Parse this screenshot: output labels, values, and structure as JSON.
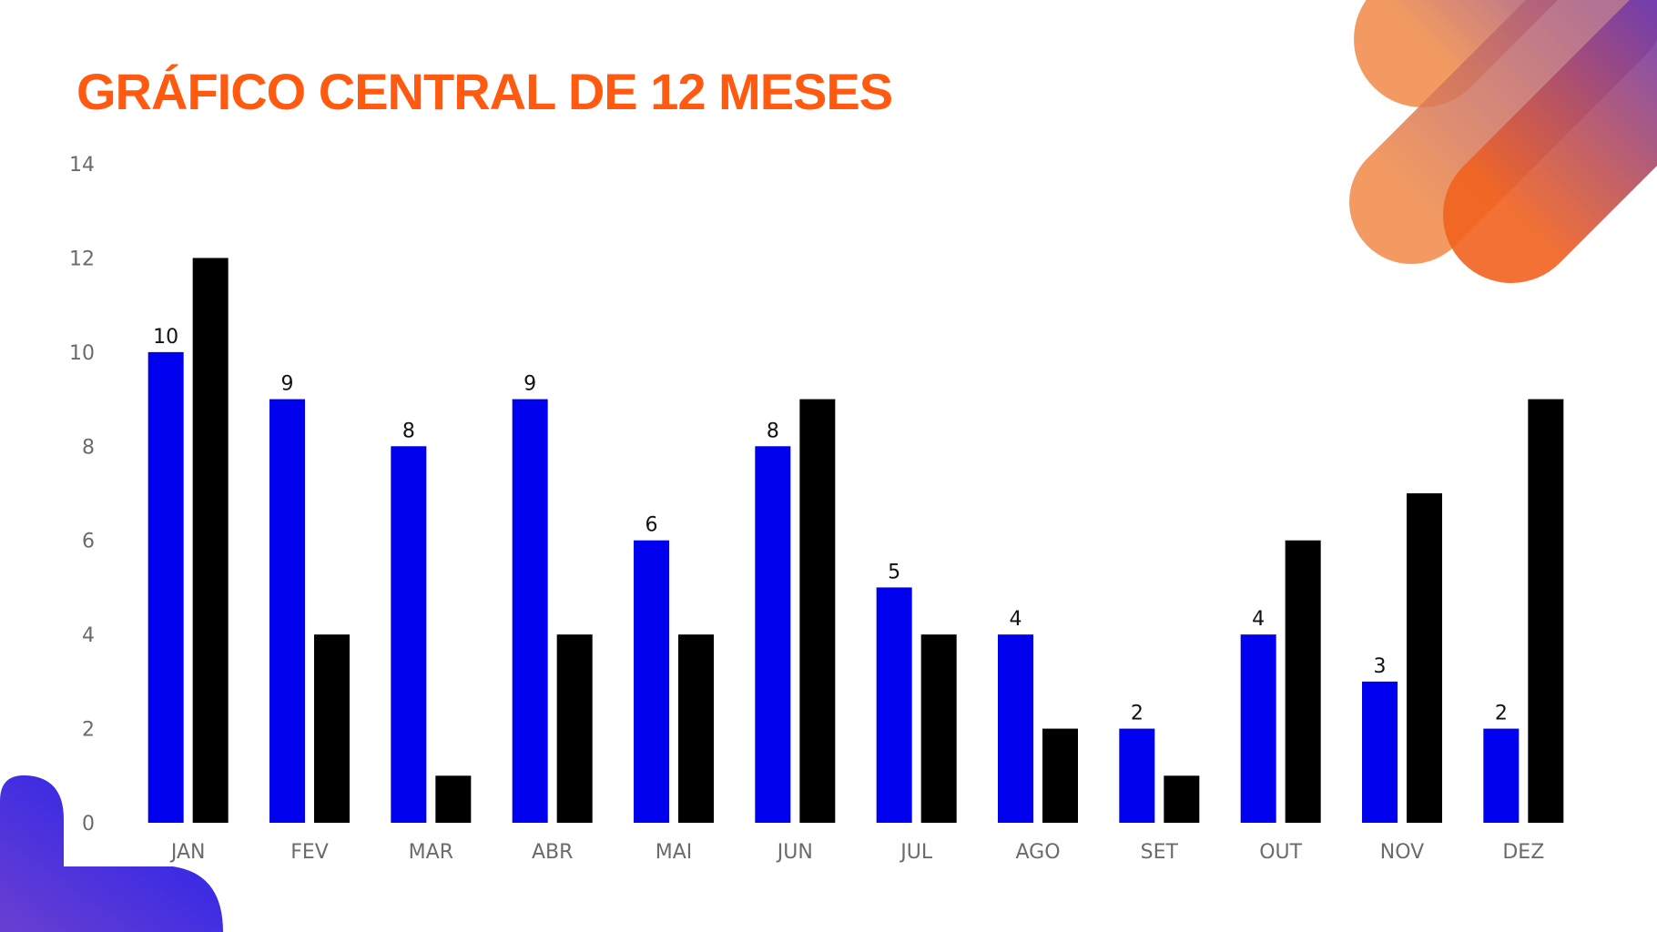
{
  "slide": {
    "title": "GRÁFICO CENTRAL DE 12 MESES"
  },
  "colors": {
    "title": "#ff5a0f",
    "series_1": "#0000ee",
    "series_2": "#000000",
    "axis_text": "#6b6b6b",
    "decor_orange": "#f26a1b",
    "decor_purple": "#5b2bb5",
    "decor_blue": "#2323f5"
  },
  "chart_data": {
    "type": "bar",
    "title": "GRÁFICO CENTRAL DE 12 MESES",
    "categories": [
      "JAN",
      "FEV",
      "MAR",
      "ABR",
      "MAI",
      "JUN",
      "JUL",
      "AGO",
      "SET",
      "OUT",
      "NOV",
      "DEZ"
    ],
    "series": [
      {
        "values": [
          10,
          9,
          8,
          9,
          6,
          8,
          5,
          4,
          2,
          4,
          3,
          2
        ],
        "color": "#0000ee",
        "data_labels": true
      },
      {
        "values": [
          12,
          4,
          1,
          4,
          4,
          9,
          4,
          2,
          1,
          6,
          7,
          9
        ],
        "color": "#000000",
        "data_labels": false
      }
    ],
    "ylim": [
      0,
      14
    ],
    "yticks": [
      0,
      2,
      4,
      6,
      8,
      10,
      12,
      14
    ],
    "grid": false,
    "legend": "none"
  }
}
